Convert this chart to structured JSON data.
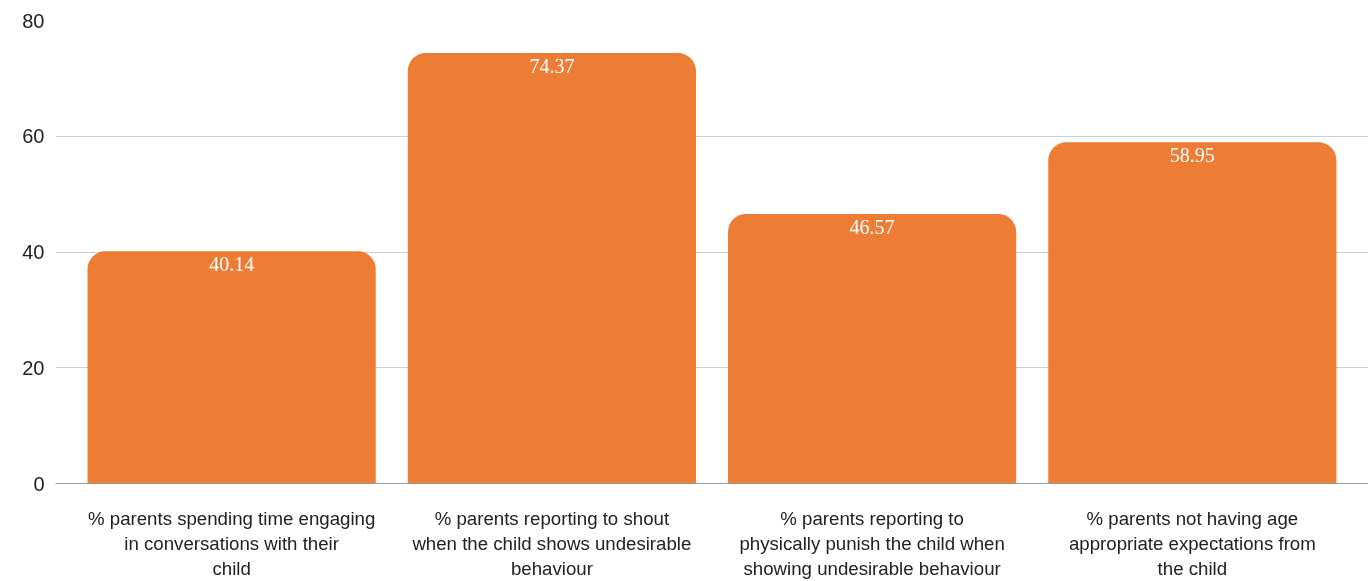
{
  "chart_data": {
    "type": "bar",
    "categories": [
      "% parents spending time engaging in conversations with their child",
      "% parents reporting to shout when the child shows undesirable behaviour",
      "% parents reporting to physically punish the child when showing undesirable behaviour",
      "% parents not having age appropriate expectations from the child"
    ],
    "values": [
      40.14,
      74.37,
      46.57,
      58.95
    ],
    "color": "#ed7d34",
    "ylim": [
      0,
      80
    ],
    "yticks": [
      0,
      20,
      40,
      60,
      80
    ],
    "grid": "y",
    "data_labels": true
  }
}
